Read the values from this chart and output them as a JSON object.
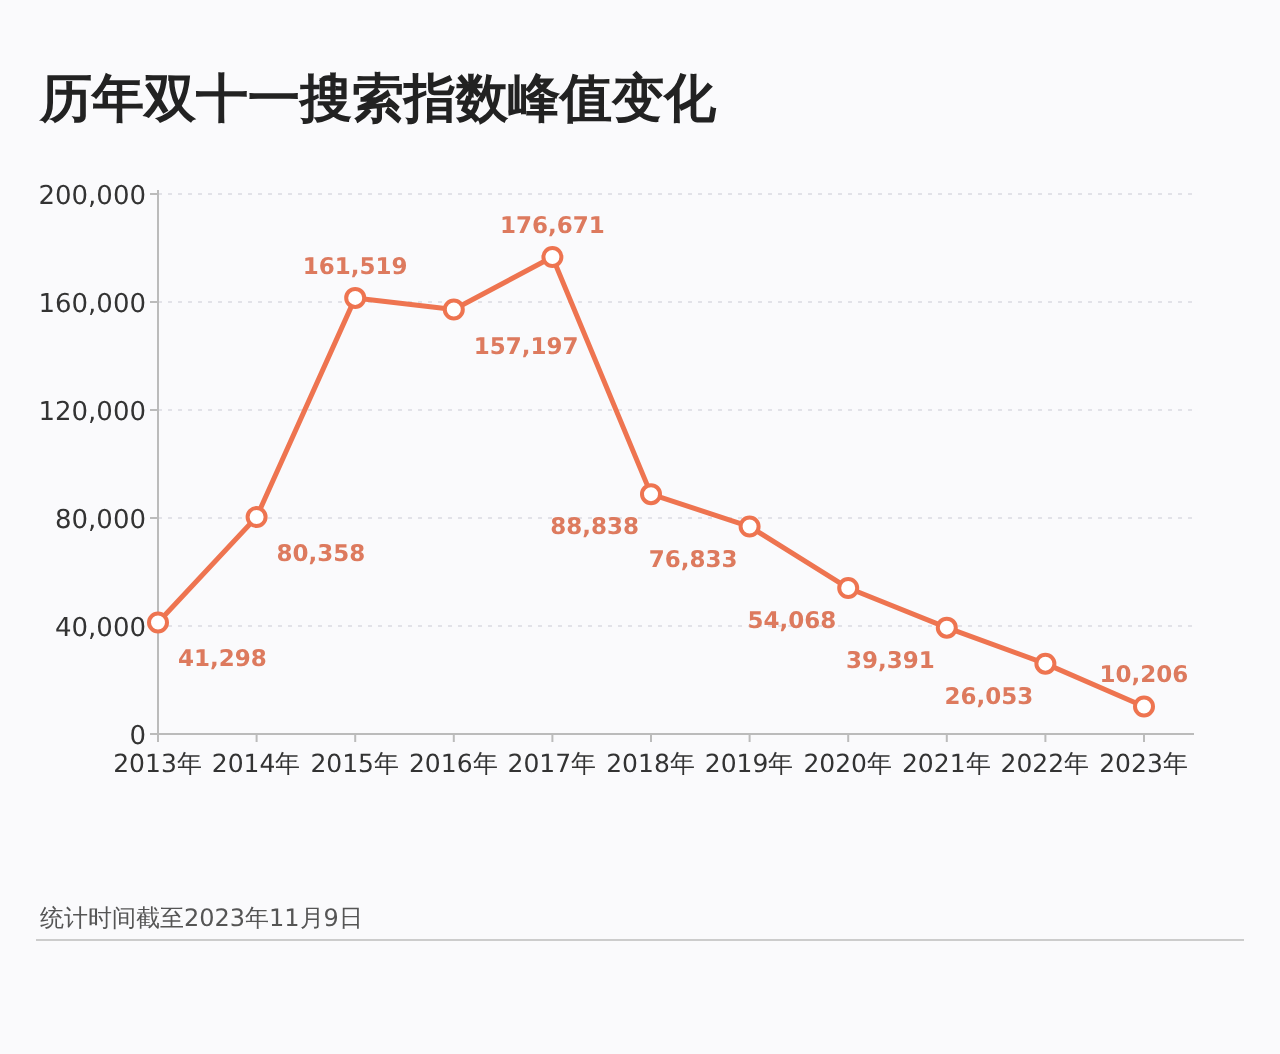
{
  "chart_data": {
    "type": "line",
    "title": "历年双十一搜索指数峰值变化",
    "categories": [
      "2013年",
      "2014年",
      "2015年",
      "2016年",
      "2017年",
      "2018年",
      "2019年",
      "2020年",
      "2021年",
      "2022年",
      "2023年"
    ],
    "values": [
      41298,
      80358,
      161519,
      157197,
      176671,
      88838,
      76833,
      54068,
      39391,
      26053,
      10206
    ],
    "value_labels": [
      "41,298",
      "80,358",
      "161,519",
      "157,197",
      "176,671",
      "88,838",
      "76,833",
      "54,068",
      "39,391",
      "26,053",
      "10,206"
    ],
    "color": "#ee7450",
    "ylim": [
      0,
      200000
    ],
    "yticks": [
      0,
      {
        "value": 40000,
        "label": "40,000"
      },
      {
        "value": 80000,
        "label": "80,000"
      },
      {
        "value": 120000,
        "label": "120,000"
      },
      {
        "value": 160000,
        "label": "160,000"
      },
      {
        "value": 200000,
        "label": "200,000"
      }
    ],
    "grid": "y",
    "marker": "circle",
    "line_style": "solid",
    "annotations": [
      "统计时间截至2023年11月9日"
    ]
  }
}
